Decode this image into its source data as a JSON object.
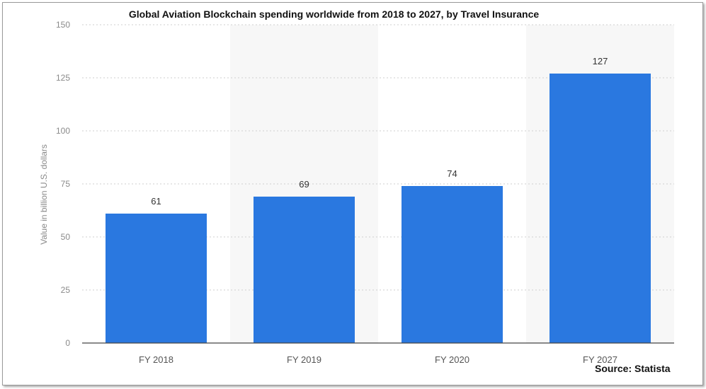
{
  "chart_data": {
    "type": "bar",
    "title": "Global Aviation Blockchain spending worldwide from 2018 to 2027, by Travel Insurance",
    "categories": [
      "FY 2018",
      "FY 2019",
      "FY 2020",
      "FY 2027"
    ],
    "values": [
      61,
      69,
      74,
      127
    ],
    "data_labels": [
      "61",
      "69",
      "74",
      "127"
    ],
    "ylabel": "Value in billion U.S. dollars",
    "xlabel": "",
    "ylim": [
      0,
      150
    ],
    "yticks": [
      0,
      25,
      50,
      75,
      100,
      125,
      150
    ],
    "grid": true,
    "bar_color": "#2a78e0",
    "source": "Source: Statista"
  }
}
